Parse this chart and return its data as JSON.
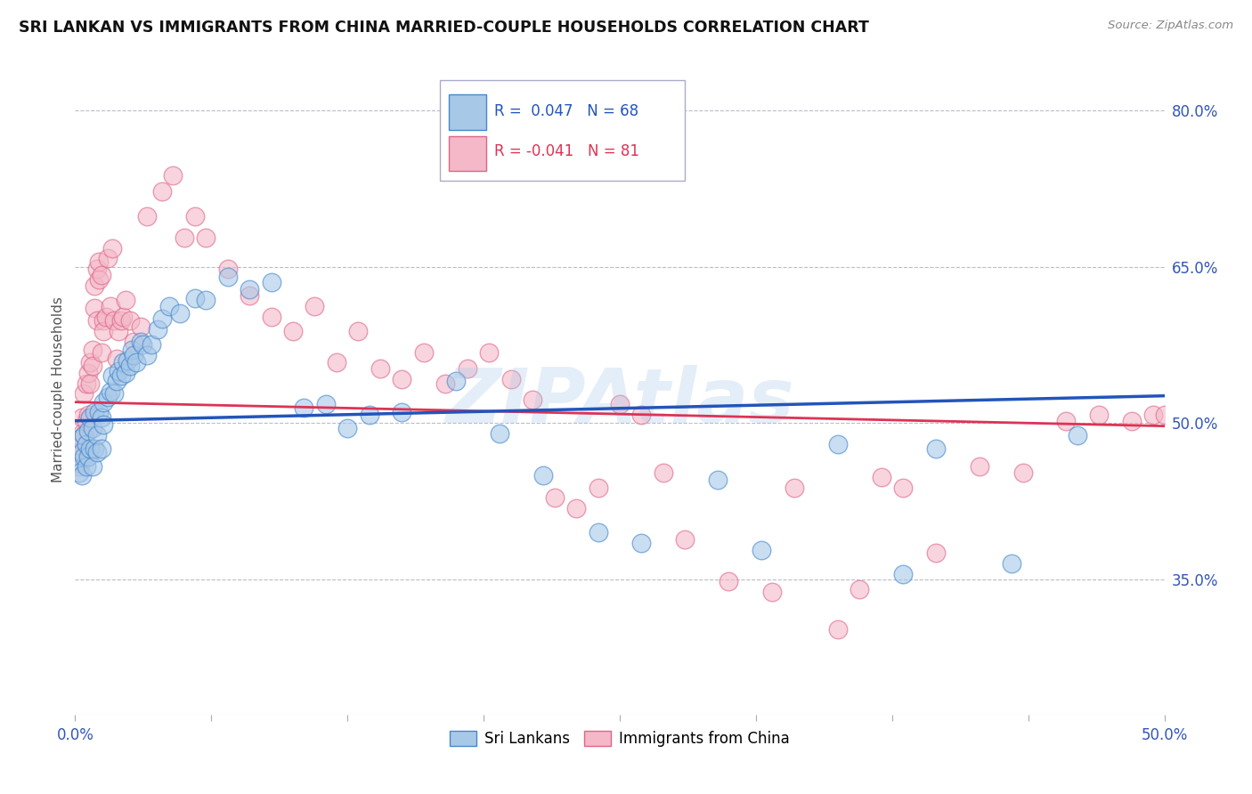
{
  "title": "SRI LANKAN VS IMMIGRANTS FROM CHINA MARRIED-COUPLE HOUSEHOLDS CORRELATION CHART",
  "source": "Source: ZipAtlas.com",
  "ylabel": "Married-couple Households",
  "yticks": [
    0.35,
    0.5,
    0.65,
    0.8
  ],
  "ytick_labels": [
    "35.0%",
    "50.0%",
    "65.0%",
    "80.0%"
  ],
  "xlim": [
    0.0,
    0.5
  ],
  "ylim": [
    0.22,
    0.845
  ],
  "xticks": [
    0.0,
    0.0625,
    0.125,
    0.1875,
    0.25,
    0.3125,
    0.375,
    0.4375,
    0.5
  ],
  "watermark": "ZIPAtlas",
  "blue_color": "#A8C8E8",
  "pink_color": "#F4B8C8",
  "blue_edge_color": "#4488CC",
  "pink_edge_color": "#DD6688",
  "blue_line_color": "#2255BB",
  "pink_line_color": "#DD3355",
  "blue_intercept": 0.502,
  "pink_intercept": 0.52,
  "blue_slope": 0.048,
  "pink_slope": -0.046,
  "scatter_blue": [
    [
      0.001,
      0.462
    ],
    [
      0.002,
      0.485
    ],
    [
      0.002,
      0.452
    ],
    [
      0.003,
      0.472
    ],
    [
      0.003,
      0.45
    ],
    [
      0.004,
      0.488
    ],
    [
      0.004,
      0.468
    ],
    [
      0.005,
      0.48
    ],
    [
      0.005,
      0.458
    ],
    [
      0.006,
      0.492
    ],
    [
      0.006,
      0.468
    ],
    [
      0.007,
      0.505
    ],
    [
      0.007,
      0.475
    ],
    [
      0.008,
      0.495
    ],
    [
      0.008,
      0.458
    ],
    [
      0.009,
      0.51
    ],
    [
      0.009,
      0.475
    ],
    [
      0.01,
      0.488
    ],
    [
      0.01,
      0.472
    ],
    [
      0.011,
      0.51
    ],
    [
      0.012,
      0.505
    ],
    [
      0.012,
      0.475
    ],
    [
      0.013,
      0.52
    ],
    [
      0.013,
      0.498
    ],
    [
      0.015,
      0.525
    ],
    [
      0.016,
      0.53
    ],
    [
      0.017,
      0.545
    ],
    [
      0.018,
      0.528
    ],
    [
      0.019,
      0.54
    ],
    [
      0.02,
      0.55
    ],
    [
      0.021,
      0.545
    ],
    [
      0.022,
      0.558
    ],
    [
      0.023,
      0.548
    ],
    [
      0.024,
      0.56
    ],
    [
      0.025,
      0.555
    ],
    [
      0.026,
      0.57
    ],
    [
      0.027,
      0.565
    ],
    [
      0.028,
      0.558
    ],
    [
      0.03,
      0.578
    ],
    [
      0.031,
      0.575
    ],
    [
      0.033,
      0.565
    ],
    [
      0.035,
      0.575
    ],
    [
      0.038,
      0.59
    ],
    [
      0.04,
      0.6
    ],
    [
      0.043,
      0.612
    ],
    [
      0.048,
      0.605
    ],
    [
      0.055,
      0.62
    ],
    [
      0.06,
      0.618
    ],
    [
      0.07,
      0.64
    ],
    [
      0.08,
      0.628
    ],
    [
      0.09,
      0.635
    ],
    [
      0.105,
      0.515
    ],
    [
      0.115,
      0.518
    ],
    [
      0.125,
      0.495
    ],
    [
      0.135,
      0.508
    ],
    [
      0.15,
      0.51
    ],
    [
      0.175,
      0.54
    ],
    [
      0.195,
      0.49
    ],
    [
      0.215,
      0.45
    ],
    [
      0.24,
      0.395
    ],
    [
      0.26,
      0.385
    ],
    [
      0.295,
      0.445
    ],
    [
      0.315,
      0.378
    ],
    [
      0.35,
      0.48
    ],
    [
      0.38,
      0.355
    ],
    [
      0.395,
      0.475
    ],
    [
      0.43,
      0.365
    ],
    [
      0.46,
      0.488
    ]
  ],
  "scatter_pink": [
    [
      0.001,
      0.478
    ],
    [
      0.002,
      0.472
    ],
    [
      0.002,
      0.458
    ],
    [
      0.003,
      0.505
    ],
    [
      0.003,
      0.49
    ],
    [
      0.004,
      0.528
    ],
    [
      0.004,
      0.488
    ],
    [
      0.005,
      0.538
    ],
    [
      0.005,
      0.502
    ],
    [
      0.006,
      0.548
    ],
    [
      0.006,
      0.508
    ],
    [
      0.007,
      0.538
    ],
    [
      0.007,
      0.558
    ],
    [
      0.008,
      0.57
    ],
    [
      0.008,
      0.555
    ],
    [
      0.009,
      0.61
    ],
    [
      0.009,
      0.632
    ],
    [
      0.01,
      0.598
    ],
    [
      0.01,
      0.648
    ],
    [
      0.011,
      0.638
    ],
    [
      0.011,
      0.655
    ],
    [
      0.012,
      0.642
    ],
    [
      0.012,
      0.568
    ],
    [
      0.013,
      0.598
    ],
    [
      0.013,
      0.588
    ],
    [
      0.014,
      0.602
    ],
    [
      0.015,
      0.658
    ],
    [
      0.016,
      0.612
    ],
    [
      0.017,
      0.668
    ],
    [
      0.018,
      0.598
    ],
    [
      0.019,
      0.562
    ],
    [
      0.02,
      0.588
    ],
    [
      0.021,
      0.598
    ],
    [
      0.022,
      0.602
    ],
    [
      0.023,
      0.618
    ],
    [
      0.025,
      0.598
    ],
    [
      0.027,
      0.578
    ],
    [
      0.03,
      0.592
    ],
    [
      0.033,
      0.698
    ],
    [
      0.04,
      0.722
    ],
    [
      0.045,
      0.738
    ],
    [
      0.05,
      0.678
    ],
    [
      0.055,
      0.698
    ],
    [
      0.06,
      0.678
    ],
    [
      0.07,
      0.648
    ],
    [
      0.08,
      0.622
    ],
    [
      0.09,
      0.602
    ],
    [
      0.1,
      0.588
    ],
    [
      0.11,
      0.612
    ],
    [
      0.12,
      0.558
    ],
    [
      0.13,
      0.588
    ],
    [
      0.14,
      0.552
    ],
    [
      0.15,
      0.542
    ],
    [
      0.16,
      0.568
    ],
    [
      0.17,
      0.538
    ],
    [
      0.18,
      0.552
    ],
    [
      0.19,
      0.568
    ],
    [
      0.2,
      0.542
    ],
    [
      0.21,
      0.522
    ],
    [
      0.22,
      0.428
    ],
    [
      0.23,
      0.418
    ],
    [
      0.24,
      0.438
    ],
    [
      0.25,
      0.518
    ],
    [
      0.26,
      0.508
    ],
    [
      0.27,
      0.452
    ],
    [
      0.28,
      0.388
    ],
    [
      0.3,
      0.348
    ],
    [
      0.32,
      0.338
    ],
    [
      0.33,
      0.438
    ],
    [
      0.35,
      0.302
    ],
    [
      0.36,
      0.34
    ],
    [
      0.37,
      0.448
    ],
    [
      0.38,
      0.438
    ],
    [
      0.395,
      0.375
    ],
    [
      0.415,
      0.458
    ],
    [
      0.435,
      0.452
    ],
    [
      0.455,
      0.502
    ],
    [
      0.47,
      0.508
    ],
    [
      0.485,
      0.502
    ],
    [
      0.495,
      0.508
    ],
    [
      0.5,
      0.508
    ]
  ]
}
